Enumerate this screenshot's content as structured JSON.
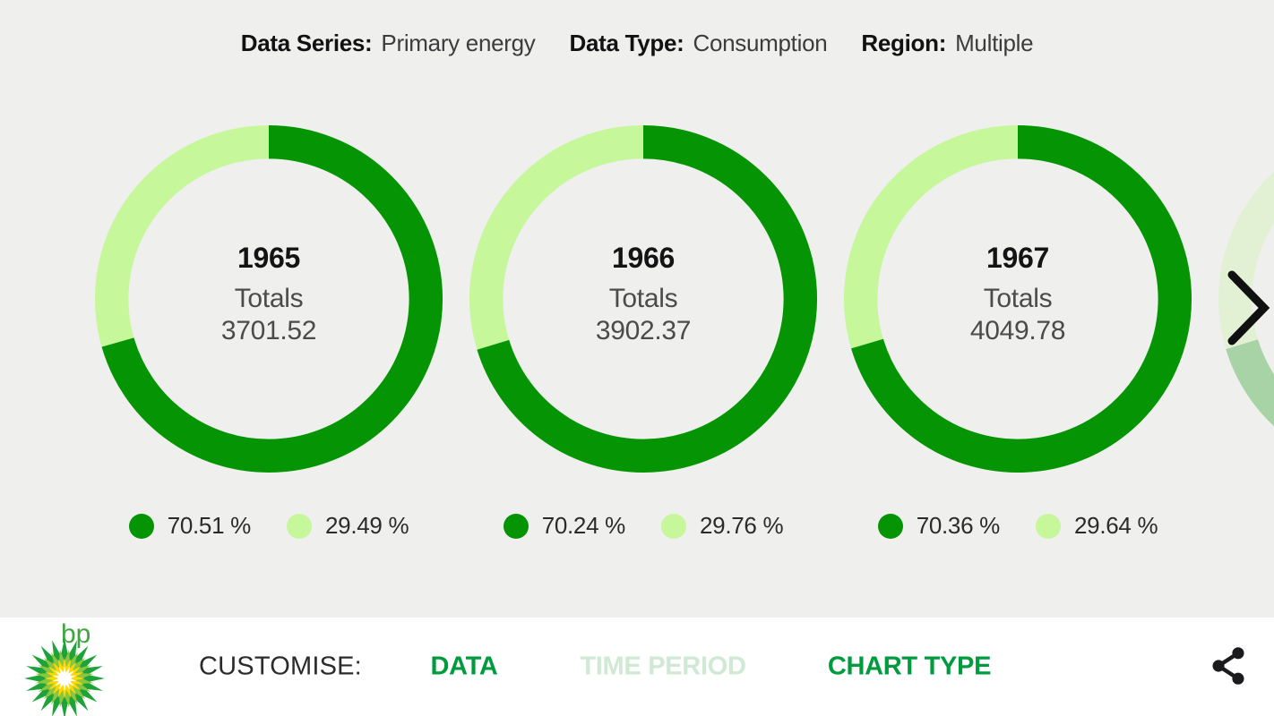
{
  "header": {
    "pairs": [
      {
        "label": "Data Series:",
        "value": "Primary energy"
      },
      {
        "label": "Data Type:",
        "value": "Consumption"
      },
      {
        "label": "Region:",
        "value": "Multiple"
      }
    ]
  },
  "chart_data": {
    "type": "pie",
    "subtype": "donut_carousel",
    "title": "Primary energy consumption totals by year with two-segment share split",
    "legend_position": "below-chart",
    "series_colors": {
      "dark_green": "#049404",
      "light_green": "#c6f79a"
    },
    "charts": [
      {
        "year": "1965",
        "center_label": "Totals",
        "total": "3701.52",
        "slices": [
          {
            "color": "dark_green",
            "pct": 70.51,
            "label": "70.51 %"
          },
          {
            "color": "light_green",
            "pct": 29.49,
            "label": "29.49 %"
          }
        ]
      },
      {
        "year": "1966",
        "center_label": "Totals",
        "total": "3902.37",
        "slices": [
          {
            "color": "dark_green",
            "pct": 70.24,
            "label": "70.24 %"
          },
          {
            "color": "light_green",
            "pct": 29.76,
            "label": "29.76 %"
          }
        ]
      },
      {
        "year": "1967",
        "center_label": "Totals",
        "total": "4049.78",
        "slices": [
          {
            "color": "dark_green",
            "pct": 70.36,
            "label": "70.36 %"
          },
          {
            "color": "light_green",
            "pct": 29.64,
            "label": "29.64 %"
          }
        ]
      },
      {
        "preview": true,
        "slices": [
          {
            "color": "dark_green",
            "pct": 70.3
          },
          {
            "color": "light_green",
            "pct": 29.7
          }
        ]
      }
    ]
  },
  "footer": {
    "customise_label": "CUSTOMISE:",
    "logo_text": "bp",
    "menu": [
      {
        "label": "DATA",
        "state": "active"
      },
      {
        "label": "TIME PERIOD",
        "state": "dimmed"
      },
      {
        "label": "CHART TYPE",
        "state": "active"
      }
    ]
  },
  "colors": {
    "background": "#efefee",
    "bar_background": "#ffffff",
    "dark_green": "#049404",
    "light_green": "#c6f79a",
    "menu_active": "#009b3e",
    "menu_dimmed": "#cfe9d5",
    "icon_black": "#151515",
    "bp_wordmark": "#3fa53f",
    "helios_greens": [
      "#1ea33b",
      "#8cc63f",
      "#ffd900"
    ]
  }
}
